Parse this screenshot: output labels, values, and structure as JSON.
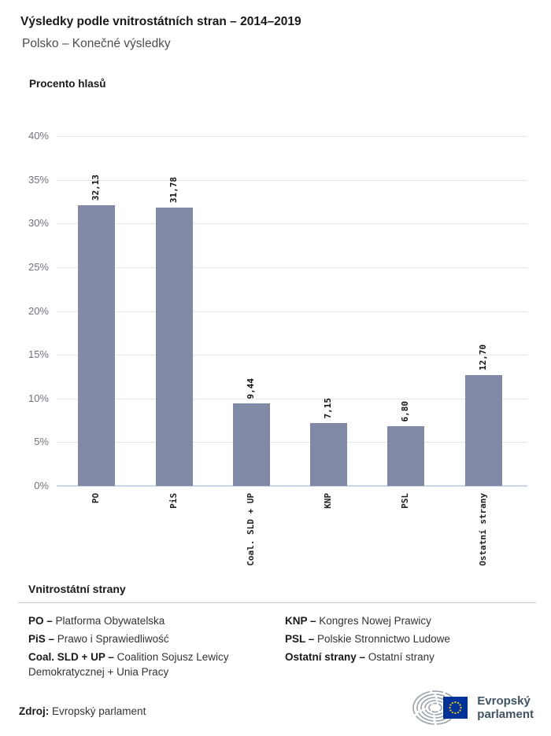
{
  "page": {
    "title": "Výsledky podle vnitrostátních stran – 2014–2019",
    "subtitle": "Polsko – Konečné výsledky"
  },
  "chart_data": {
    "type": "bar",
    "title": "Výsledky podle vnitrostátních stran – 2014–2019",
    "subtitle": "Polsko – Konečné výsledky",
    "ylabel": "Procento hlasů",
    "xlabel": "",
    "categories": [
      "PO",
      "PiS",
      "Coal. SLD + UP",
      "KNP",
      "PSL",
      "Ostatní strany"
    ],
    "values": [
      32.13,
      31.78,
      9.44,
      7.15,
      6.8,
      12.7
    ],
    "value_labels": [
      "32,13",
      "31,78",
      "9,44",
      "7,15",
      "6,80",
      "12,70"
    ],
    "ylim": [
      0,
      40
    ],
    "ytick_step": 5,
    "ytick_suffix": "%",
    "grid": true,
    "legend_position": "none"
  },
  "legend": {
    "title": "Vnitrostátní strany",
    "columns": [
      [
        {
          "label": "PO –",
          "text": "Platforma Obywatelska"
        },
        {
          "label": "PiS –",
          "text": "Prawo i Sprawiedliwość"
        },
        {
          "label": "Coal. SLD + UP –",
          "text": "Coalition Sojusz Lewicy Demokratycznej + Unia Pracy"
        }
      ],
      [
        {
          "label": "KNP –",
          "text": "Kongres Nowej Prawicy"
        },
        {
          "label": "PSL –",
          "text": "Polskie Stronnictwo Ludowe"
        },
        {
          "label": "Ostatní strany –",
          "text": "Ostatní strany"
        }
      ]
    ]
  },
  "footer": {
    "source_label": "Zdroj:",
    "source_text": "Evropský parlament",
    "logo_line1": "Evropský",
    "logo_line2": "parlament"
  },
  "colors": {
    "bar": "#8089A6",
    "gridline": "#e5e5e5",
    "axis_line": "#ccd6ea",
    "tick_label": "#6e7380",
    "logo_arc": "#99a1a8",
    "eu_blue": "#003399",
    "eu_star": "#ffcc00",
    "logo_text": "#3e5463"
  }
}
